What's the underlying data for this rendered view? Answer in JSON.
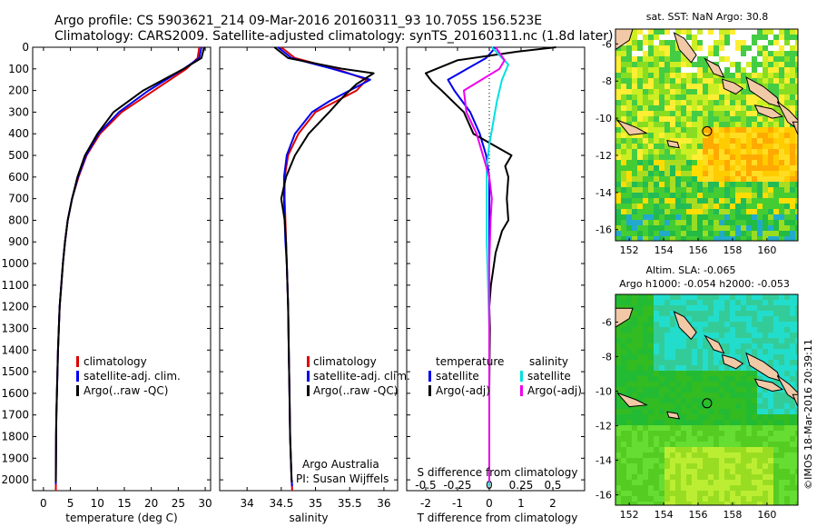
{
  "header": {
    "line1": "Argo profile: CS 5903621_214 09-Mar-2016 20160311_93 10.705S 156.523E",
    "line2": "Climatology: CARS2009. Satellite-adjusted climatology: synTS_20160311.nc (1.8d later)"
  },
  "colors": {
    "climatology": "#dd0000",
    "satellite": "#0000ee",
    "argo": "#000000",
    "sal_satellite": "#00e0e0",
    "sal_argo": "#ee00ee"
  },
  "chart_data": [
    {
      "type": "line",
      "id": "temperature",
      "xlabel": "temperature (deg C)",
      "ylabel": "",
      "xlim": [
        -2,
        31
      ],
      "ylim": [
        2050,
        0
      ],
      "xticks": [
        0,
        5,
        10,
        15,
        20,
        25,
        30
      ],
      "yticks": [
        0,
        100,
        200,
        300,
        400,
        500,
        600,
        700,
        800,
        900,
        1000,
        1100,
        1200,
        1300,
        1400,
        1500,
        1600,
        1700,
        1800,
        1900,
        2000
      ],
      "legend": [
        "climatology",
        "satellite-adj. clim.",
        "Argo(..raw -QC)"
      ],
      "legend_position": "lower-center",
      "series": [
        {
          "name": "climatology",
          "color": "#dd0000",
          "x": [
            28.9,
            28.6,
            26.5,
            20.5,
            14.5,
            10.5,
            8.0,
            6.5,
            5.3,
            4.5,
            4.0,
            3.6,
            3.3,
            3.0,
            2.85,
            2.7,
            2.6,
            2.5,
            2.4,
            2.35,
            2.3
          ],
          "y": [
            0,
            50,
            100,
            200,
            300,
            400,
            500,
            600,
            700,
            800,
            900,
            1000,
            1100,
            1200,
            1300,
            1400,
            1500,
            1600,
            1700,
            1800,
            2050
          ]
        },
        {
          "name": "satellite-adj. clim.",
          "color": "#0000ee",
          "x": [
            29.3,
            28.9,
            26.0,
            19.5,
            14.0,
            10.2,
            7.9,
            6.4,
            5.3,
            4.5,
            4.0,
            3.6,
            3.3,
            3.0,
            2.85,
            2.7,
            2.6,
            2.5,
            2.4,
            2.35,
            2.3
          ],
          "y": [
            0,
            50,
            100,
            200,
            300,
            400,
            500,
            600,
            700,
            800,
            900,
            1000,
            1100,
            1200,
            1300,
            1400,
            1500,
            1600,
            1700,
            1800,
            2020
          ]
        },
        {
          "name": "Argo(..raw -QC)",
          "color": "#000000",
          "x": [
            29.8,
            29.3,
            26.0,
            18.5,
            13.0,
            10.0,
            7.7,
            6.3,
            5.3,
            4.5,
            4.0,
            3.6,
            3.3,
            3.0,
            2.85,
            2.7,
            2.6,
            2.5,
            2.4,
            2.35,
            2.3
          ],
          "y": [
            0,
            50,
            100,
            200,
            300,
            400,
            500,
            600,
            700,
            800,
            900,
            1000,
            1100,
            1200,
            1300,
            1400,
            1500,
            1600,
            1700,
            1800,
            2010
          ]
        }
      ]
    },
    {
      "type": "line",
      "id": "salinity",
      "xlabel": "salinity",
      "ylabel": "",
      "xlim": [
        33.6,
        36.2
      ],
      "ylim": [
        2050,
        0
      ],
      "xticks": [
        34,
        34.5,
        35,
        35.5,
        36
      ],
      "legend": [
        "climatology",
        "satellite-adj. clim.",
        "Argo(..raw -QC)"
      ],
      "legend_position": "lower-right",
      "annotations": [
        "Argo Australia",
        "PI: Susan Wijffels"
      ],
      "series": [
        {
          "name": "climatology",
          "color": "#dd0000",
          "x": [
            34.5,
            34.7,
            35.3,
            35.75,
            35.6,
            35.3,
            35.0,
            34.75,
            34.6,
            34.55,
            34.55,
            34.56,
            34.57,
            34.58,
            34.6,
            34.61,
            34.62,
            34.63,
            34.64,
            34.65,
            34.66
          ],
          "y": [
            0,
            50,
            100,
            150,
            200,
            250,
            300,
            400,
            500,
            600,
            700,
            800,
            900,
            1000,
            1200,
            1400,
            1600,
            1800,
            1900,
            2000,
            2050
          ]
        },
        {
          "name": "satellite-adj. clim.",
          "color": "#0000ee",
          "x": [
            34.45,
            34.65,
            35.25,
            35.8,
            35.5,
            35.2,
            34.95,
            34.7,
            34.58,
            34.54,
            34.54,
            34.55,
            34.56,
            34.58,
            34.6,
            34.61,
            34.62,
            34.63,
            34.64,
            34.65,
            34.66
          ],
          "y": [
            0,
            50,
            100,
            150,
            200,
            250,
            300,
            400,
            500,
            600,
            700,
            800,
            900,
            1000,
            1200,
            1400,
            1600,
            1800,
            1900,
            2000,
            2030
          ]
        },
        {
          "name": "Argo(..raw -QC)",
          "color": "#000000",
          "x": [
            34.4,
            34.6,
            35.4,
            35.85,
            35.6,
            35.4,
            35.2,
            34.9,
            34.7,
            34.57,
            34.5,
            34.55,
            34.57,
            34.58,
            34.6,
            34.61,
            34.62,
            34.63,
            34.64,
            34.65,
            34.66
          ],
          "y": [
            0,
            50,
            100,
            120,
            170,
            230,
            300,
            400,
            500,
            600,
            700,
            800,
            900,
            1000,
            1200,
            1400,
            1600,
            1800,
            1900,
            2000,
            2010
          ]
        }
      ]
    },
    {
      "type": "line",
      "id": "difference",
      "xlabel": "T difference from climatology",
      "xlabel_top": "S difference from climatology",
      "xlim": [
        -2.6,
        3.0
      ],
      "ylim": [
        2050,
        0
      ],
      "xticks": [
        -2,
        -1,
        0,
        1,
        2
      ],
      "xtick_labels": [
        "-2",
        "-1",
        "0",
        "1",
        "2"
      ],
      "s_ticks": [
        -0.5,
        -0.25,
        0,
        0.25,
        0.5
      ],
      "s_tick_labels": [
        "-0.5",
        "-0.25",
        "0",
        "0.25",
        "0.5"
      ],
      "s_scale": 4,
      "legend_temperature": {
        "title": "temperature",
        "items": [
          "satellite",
          "Argo(-adj)"
        ]
      },
      "legend_salinity": {
        "title": "salinity",
        "items": [
          "satellite",
          "Argo(-adj)"
        ]
      },
      "series": [
        {
          "name": "T satellite",
          "color": "#0000ee",
          "x": [
            0.2,
            -0.1,
            -0.7,
            -1.3,
            -1.1,
            -0.6,
            -0.3,
            -0.1,
            0.0,
            0.0,
            0.0,
            0.0,
            0.0,
            0.0,
            0.0,
            0.0,
            0.0
          ],
          "y": [
            0,
            50,
            100,
            150,
            200,
            300,
            400,
            500,
            600,
            700,
            800,
            1000,
            1200,
            1500,
            1800,
            2000,
            2030
          ]
        },
        {
          "name": "T Argo(-adj)",
          "color": "#000000",
          "x": [
            2.1,
            0.9,
            -1.0,
            -2.0,
            -1.8,
            -1.5,
            -0.8,
            -0.5,
            0.7,
            0.5,
            0.6,
            0.55,
            0.6,
            0.4,
            0.3,
            0.2,
            0.15,
            0.05,
            0.0,
            0.02,
            0.01,
            0.0,
            0.0,
            0.0,
            0.0
          ],
          "y": [
            0,
            20,
            60,
            120,
            160,
            200,
            300,
            400,
            500,
            550,
            600,
            700,
            800,
            850,
            900,
            950,
            1000,
            1100,
            1200,
            1300,
            1400,
            1600,
            1800,
            2000,
            2010
          ]
        },
        {
          "name": "S satellite",
          "color": "#00e0e0",
          "unit": "salinity",
          "x": [
            0.02,
            0.15,
            0.1,
            0.06,
            0.03,
            0.0,
            -0.02,
            -0.02,
            -0.02,
            -0.01,
            0.0,
            0.0,
            0.0,
            0.0,
            0.0
          ],
          "y": [
            0,
            80,
            150,
            250,
            350,
            450,
            550,
            700,
            900,
            1100,
            1300,
            1500,
            1700,
            1900,
            2030
          ]
        },
        {
          "name": "S Argo(-adj)",
          "color": "#ee00ee",
          "unit": "salinity",
          "x": [
            0.05,
            0.12,
            0.08,
            -0.2,
            -0.18,
            -0.1,
            -0.05,
            0.0,
            0.02,
            0.01,
            0.0,
            0.0,
            0.0,
            0.0,
            0.0
          ],
          "y": [
            0,
            60,
            100,
            200,
            300,
            400,
            500,
            600,
            700,
            800,
            1000,
            1200,
            1500,
            1800,
            2010
          ]
        }
      ]
    }
  ],
  "maps": {
    "sst": {
      "title": "sat. SST: NaN Argo: 30.8",
      "xticks": [
        152,
        154,
        156,
        158,
        160
      ],
      "yticks": [
        -6,
        -8,
        -10,
        -12,
        -14,
        -16
      ],
      "xlim": [
        151.2,
        161.8
      ],
      "ylim": [
        -16.6,
        -5.2
      ],
      "argo_position": [
        156.52,
        -10.7
      ]
    },
    "sla": {
      "title_line1": "Altim. SLA: -0.065",
      "title_line2": "Argo h1000: -0.054 h2000: -0.053",
      "xticks": [
        152,
        154,
        156,
        158,
        160
      ],
      "yticks": [
        -6,
        -8,
        -10,
        -12,
        -14,
        -16
      ],
      "xlim": [
        151.2,
        161.8
      ],
      "ylim": [
        -16.6,
        -4.4
      ],
      "argo_position": [
        156.52,
        -10.7
      ]
    }
  },
  "footer": {
    "credit": "©IMOS 18-Mar-2016 20:39:11"
  }
}
